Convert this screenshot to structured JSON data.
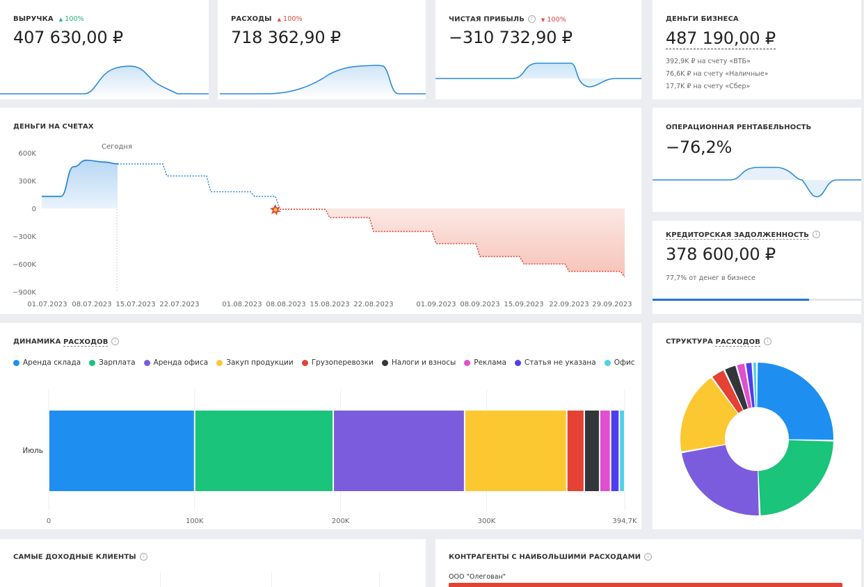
{
  "kpis": {
    "revenue": {
      "title": "ВЫРУЧКА",
      "change": "100%",
      "value": "407 630,00 ₽"
    },
    "expenses": {
      "title": "РАСХОДЫ",
      "change": "100%",
      "value": "718 362,90 ₽"
    },
    "profit": {
      "title": "ЧИСТАЯ ПРИБЫЛЬ",
      "change": "100%",
      "value": "−310 732,90 ₽"
    },
    "money": {
      "title": "ДЕНЬГИ БИЗНЕСА",
      "value": "487 190,00 ₽",
      "accounts": [
        "392,9K ₽ на счету «ВТБ»",
        "76,6K ₽ на счету «Наличные»",
        "17,7K ₽ на счету «Сбер»"
      ]
    }
  },
  "icons": {
    "up": "▲",
    "down": "▼",
    "info": "i",
    "burst": "explosion-icon"
  },
  "balance": {
    "title": "ДЕНЬГИ НА СЧЕТАХ",
    "today_label": "Сегодня",
    "y_ticks": [
      "600K",
      "300K",
      "0",
      "−300K",
      "−600K",
      "−900K"
    ],
    "x_ticks": [
      "01.07.2023",
      "08.07.2023",
      "15.07.2023",
      "22.07.2023",
      "01.08.2023",
      "08.08.2023",
      "15.08.2023",
      "22.08.2023",
      "01.09.2023",
      "08.09.2023",
      "15.09.2023",
      "22.09.2023",
      "29.09.2023"
    ]
  },
  "operating_margin": {
    "title": "ОПЕРАЦИОННАЯ РЕНТАБЕЛЬНОСТЬ",
    "value": "−76,2%"
  },
  "payables": {
    "title": "КРЕДИТОРСКАЯ ЗАДОЛЖЕННОСТЬ",
    "value": "378 600,00 ₽",
    "note": "77,7% от денег в бизнесе",
    "progress": 0.75
  },
  "dynamics": {
    "title_prefix": "ДИНАМИКА ",
    "title_link": "РАСХОДОВ",
    "row_label": "Июль",
    "x_ticks": [
      "0",
      "100K",
      "200K",
      "300K",
      "394,7K"
    ]
  },
  "structure": {
    "title_prefix": "СТРУКТУРА ",
    "title_link": "РАСХОДОВ"
  },
  "top_clients": {
    "title": "САМЫЕ ДОХОДНЫЕ КЛИЕНТЫ"
  },
  "top_vendors": {
    "title": "КОНТРАГЕНТЫ С НАИБОЛЬШИМИ РАСХОДАМИ",
    "first_name": "ООО \"Олегован\""
  },
  "chart_data": [
    {
      "type": "line",
      "title": "ДЕНЬГИ НА СЧЕТАХ",
      "ylim": [
        -900000,
        600000
      ],
      "annotation": "Сегодня",
      "series": [
        {
          "name": "actual",
          "x": [
            "01.07.2023",
            "04.07.2023",
            "06.07.2023",
            "08.07.2023",
            "11.07.2023",
            "13.07.2023"
          ],
          "values": [
            130000,
            130000,
            450000,
            520000,
            500000,
            480000
          ]
        },
        {
          "name": "forecast",
          "x": [
            "13.07.2023",
            "20.07.2023",
            "27.07.2023",
            "03.08.2023",
            "07.08.2023",
            "15.08.2023",
            "22.08.2023",
            "01.09.2023",
            "08.09.2023",
            "15.09.2023",
            "22.09.2023",
            "29.09.2023"
          ],
          "values": [
            480000,
            350000,
            180000,
            130000,
            -10000,
            -100000,
            -250000,
            -380000,
            -520000,
            -600000,
            -680000,
            -740000
          ]
        }
      ]
    },
    {
      "type": "bar",
      "title": "ДИНАМИКА РАСХОДОВ",
      "categories": [
        "Июль"
      ],
      "xlim": [
        0,
        394700
      ],
      "series": [
        {
          "name": "Аренда склада",
          "values": [
            100000
          ],
          "color": "#1e8ff0"
        },
        {
          "name": "Зарплата",
          "values": [
            95000
          ],
          "color": "#1ac47a"
        },
        {
          "name": "Аренда офиса",
          "values": [
            90000
          ],
          "color": "#7b5cdc"
        },
        {
          "name": "Закуп продукции",
          "values": [
            70000
          ],
          "color": "#fcc832"
        },
        {
          "name": "Грузоперевозки",
          "values": [
            12000
          ],
          "color": "#e34234"
        },
        {
          "name": "Налоги и взносы",
          "values": [
            10500
          ],
          "color": "#33363b"
        },
        {
          "name": "Реклама",
          "values": [
            7500
          ],
          "color": "#df4fcf"
        },
        {
          "name": "Статья не указана",
          "values": [
            6000
          ],
          "color": "#4f3ef0"
        },
        {
          "name": "Офис",
          "values": [
            3700
          ],
          "color": "#4fd0e8"
        }
      ]
    },
    {
      "type": "pie",
      "title": "СТРУКТУРА РАСХОДОВ",
      "categories": [
        "Аренда склада",
        "Зарплата",
        "Аренда офиса",
        "Закуп продукции",
        "Грузоперевозки",
        "Налоги и взносы",
        "Реклама",
        "Статья не указана",
        "Офис"
      ],
      "values": [
        100000,
        95000,
        90000,
        70000,
        12000,
        10500,
        7500,
        6000,
        3700
      ]
    }
  ]
}
